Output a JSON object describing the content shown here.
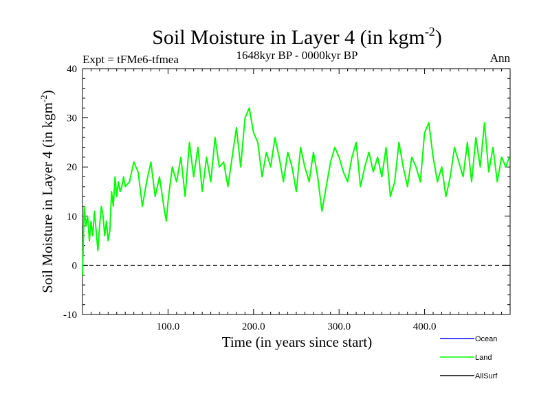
{
  "chart_data": {
    "type": "line",
    "title": "Soil Moisture in Layer 4 (in kgm",
    "title_sup": "-2",
    "title_close": ")",
    "subtitle_left": "Expt = tFMe6-tfmea",
    "subtitle_center": "1648kyr BP - 0000kyr BP",
    "subtitle_right": "Ann",
    "xlabel": "Time (in years since start)",
    "ylabel": "Soil Moisture in Layer 4 (in kgm",
    "ylabel_sup": "-2",
    "ylabel_close": ")",
    "xlim": [
      0,
      500
    ],
    "ylim": [
      -10,
      40
    ],
    "x_ticks": [
      100,
      200,
      300,
      400
    ],
    "x_tick_labels": [
      "100.0",
      "200.0",
      "300.0",
      "400.0"
    ],
    "y_ticks": [
      -10,
      0,
      10,
      20,
      30,
      40
    ],
    "y_tick_labels": [
      "-10",
      "0",
      "10",
      "20",
      "30",
      "40"
    ],
    "zero_line": {
      "y": 0,
      "style": "dashed"
    },
    "legend": [
      {
        "name": "Ocean",
        "color": "#0000ff"
      },
      {
        "name": "Land",
        "color": "#00ff00"
      },
      {
        "name": "AllSurf",
        "color": "#000000"
      }
    ],
    "series": [
      {
        "name": "Land",
        "color": "#00ff00",
        "x": [
          0,
          2,
          4,
          6,
          8,
          10,
          12,
          14,
          16,
          18,
          20,
          22,
          24,
          26,
          28,
          30,
          32,
          34,
          36,
          38,
          40,
          42,
          44,
          46,
          48,
          50,
          55,
          60,
          65,
          70,
          75,
          80,
          85,
          90,
          95,
          98,
          100,
          105,
          110,
          115,
          120,
          125,
          130,
          135,
          140,
          145,
          150,
          155,
          160,
          165,
          170,
          175,
          180,
          185,
          190,
          195,
          200,
          205,
          210,
          215,
          220,
          225,
          230,
          235,
          240,
          245,
          250,
          255,
          260,
          265,
          270,
          275,
          280,
          285,
          290,
          295,
          300,
          305,
          310,
          315,
          320,
          325,
          330,
          335,
          340,
          345,
          350,
          355,
          360,
          365,
          370,
          375,
          380,
          385,
          390,
          395,
          400,
          405,
          410,
          415,
          420,
          425,
          430,
          435,
          440,
          445,
          450,
          455,
          460,
          465,
          470,
          475,
          480,
          485,
          490,
          495,
          499
        ],
        "values": [
          -2,
          12,
          8,
          10,
          5,
          9,
          6,
          11,
          7,
          3,
          8,
          12,
          10,
          6,
          9,
          5,
          7,
          15,
          12,
          18,
          14,
          17,
          15,
          16,
          18,
          16,
          17,
          21,
          19,
          12,
          17,
          21,
          14,
          18,
          12,
          9,
          13,
          20,
          17,
          22,
          14,
          25,
          18,
          24,
          15,
          22,
          17,
          26,
          20,
          21,
          16,
          22,
          28,
          20,
          30,
          32,
          27,
          25,
          18,
          23,
          20,
          26,
          22,
          17,
          23,
          20,
          15,
          24,
          20,
          17,
          23,
          18,
          11,
          16,
          21,
          24,
          22,
          19,
          17,
          22,
          25,
          16,
          20,
          23,
          19,
          22,
          18,
          24,
          14,
          17,
          25,
          20,
          16,
          22,
          20,
          17,
          27,
          29,
          22,
          17,
          20,
          14,
          18,
          24,
          21,
          18,
          25,
          17,
          26,
          20,
          29,
          19,
          24,
          17,
          22,
          20,
          22
        ]
      }
    ]
  }
}
